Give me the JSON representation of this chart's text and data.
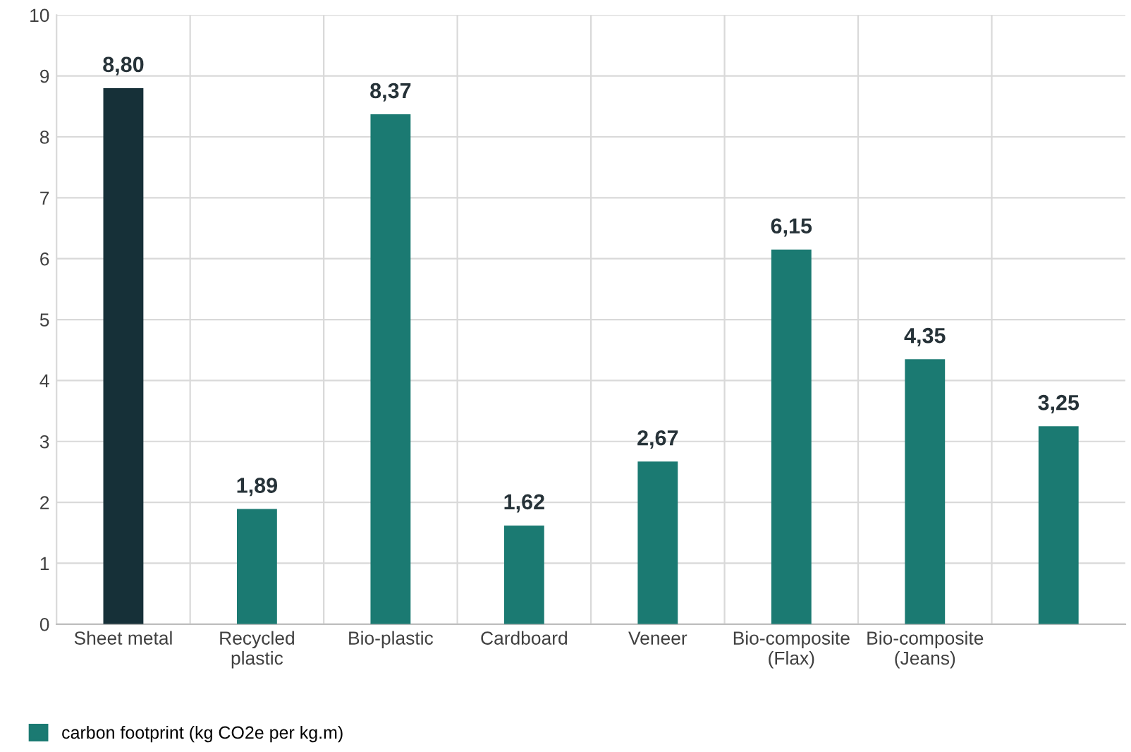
{
  "chart_data": {
    "type": "bar",
    "categories": [
      "Sheet metal",
      "Recycled\nplastic",
      "Bio-plastic",
      "Cardboard",
      "Veneer",
      "Bio-composite\n(Flax)",
      "Bio-composite\n(Jeans)",
      null
    ],
    "series": [
      {
        "name": "carbon footprint (kg CO2e per kg.m)",
        "color": "#1b7a72",
        "colors": [
          "#163038",
          "#1b7a72",
          "#1b7a72",
          "#1b7a72",
          "#1b7a72",
          "#1b7a72",
          "#1b7a72",
          "#1b7a72"
        ],
        "values": [
          8.8,
          1.89,
          8.37,
          1.62,
          2.67,
          6.15,
          4.35,
          3.25
        ],
        "value_labels": [
          "8,80",
          "1,89",
          "8,37",
          "1,62",
          "2,67",
          "6,15",
          "4,35",
          "3,25"
        ]
      }
    ],
    "ylim": [
      0,
      10
    ],
    "yticks": [
      0,
      1,
      2,
      3,
      4,
      5,
      6,
      7,
      8,
      9,
      10
    ],
    "grid": true,
    "legend": "bottom left"
  }
}
